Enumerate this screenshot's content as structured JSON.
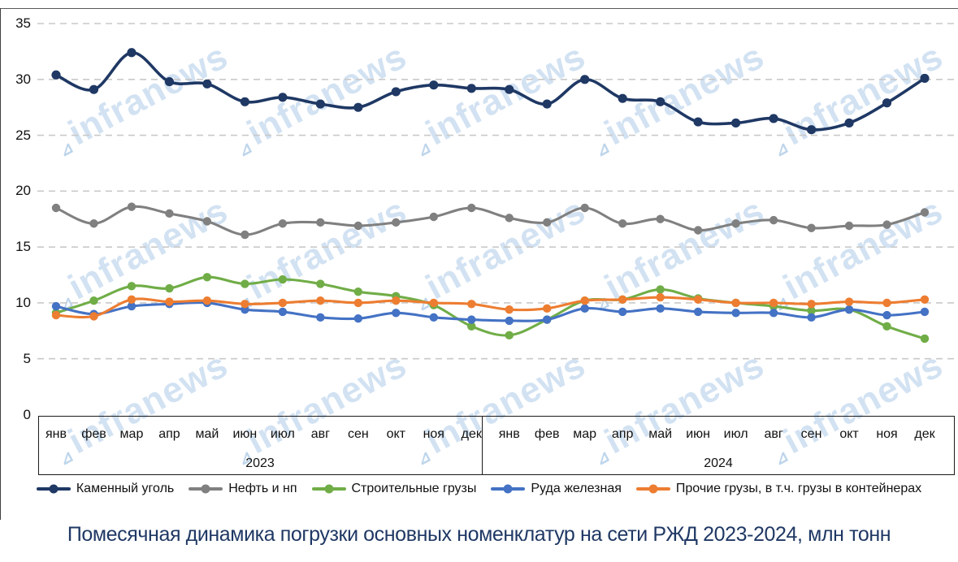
{
  "title": "Помесячная динамика погрузки основных номенклатур на сети РЖД 2023-2024, млн тонн",
  "watermark": {
    "text": "infranews",
    "color": "#aecbe8"
  },
  "axis_color": "#1a1a1a",
  "grid_color": "#c9c9c9",
  "chart_data": {
    "type": "line",
    "title": "Помесячная динамика погрузки основных номенклатур на сети РЖД 2023-2024, млн тонн",
    "ylabel": "млн тонн",
    "y_ticks": [
      0,
      5,
      10,
      15,
      20,
      25,
      30,
      35
    ],
    "ylim": [
      0,
      37
    ],
    "grid": "horizontal-dashed",
    "legend_position": "bottom",
    "year_groups": [
      {
        "label": "2023",
        "months": [
          "янв",
          "фев",
          "мар",
          "апр",
          "май",
          "июн",
          "июл",
          "авг",
          "сен",
          "окт",
          "ноя",
          "дек"
        ]
      },
      {
        "label": "2024",
        "months": [
          "янв",
          "фев",
          "мар",
          "апр",
          "май",
          "июн",
          "июл",
          "авг",
          "сен",
          "окт",
          "ноя",
          "дек"
        ]
      }
    ],
    "series": [
      {
        "name": "Каменный уголь",
        "color": "#1f3864",
        "values": [
          30.4,
          29.1,
          32.4,
          29.8,
          29.6,
          28.0,
          28.4,
          27.8,
          27.5,
          28.9,
          29.5,
          29.2,
          29.1,
          27.8,
          30.0,
          28.3,
          28.0,
          26.2,
          26.1,
          26.5,
          25.5,
          26.1,
          27.9,
          30.1
        ]
      },
      {
        "name": "Нефть и нп",
        "color": "#808080",
        "values": [
          18.5,
          17.1,
          18.6,
          18.0,
          17.3,
          16.1,
          17.1,
          17.2,
          16.9,
          17.2,
          17.7,
          18.5,
          17.6,
          17.2,
          18.5,
          17.1,
          17.5,
          16.5,
          17.1,
          17.4,
          16.7,
          16.9,
          17.0,
          18.1
        ]
      },
      {
        "name": "Строительные грузы",
        "color": "#70ad47",
        "values": [
          9.1,
          10.2,
          11.5,
          11.3,
          12.3,
          11.7,
          12.1,
          11.7,
          11.0,
          10.6,
          9.8,
          7.9,
          7.1,
          8.5,
          10.2,
          10.3,
          11.2,
          10.4,
          10.0,
          9.7,
          9.3,
          9.4,
          7.9,
          6.8
        ]
      },
      {
        "name": "Руда железная",
        "color": "#4472c4",
        "values": [
          9.7,
          9.0,
          9.7,
          9.9,
          10.0,
          9.4,
          9.2,
          8.7,
          8.6,
          9.1,
          8.7,
          8.5,
          8.4,
          8.5,
          9.5,
          9.2,
          9.5,
          9.2,
          9.1,
          9.1,
          8.7,
          9.4,
          8.9,
          9.2
        ]
      },
      {
        "name": "Прочие грузы, в т.ч. грузы в контейнерах",
        "color": "#ed7d31",
        "values": [
          8.9,
          8.8,
          10.3,
          10.1,
          10.2,
          9.9,
          10.0,
          10.2,
          10.0,
          10.2,
          10.0,
          9.9,
          9.4,
          9.5,
          10.2,
          10.3,
          10.5,
          10.3,
          10.0,
          10.0,
          9.9,
          10.1,
          10.0,
          10.3
        ]
      }
    ]
  }
}
